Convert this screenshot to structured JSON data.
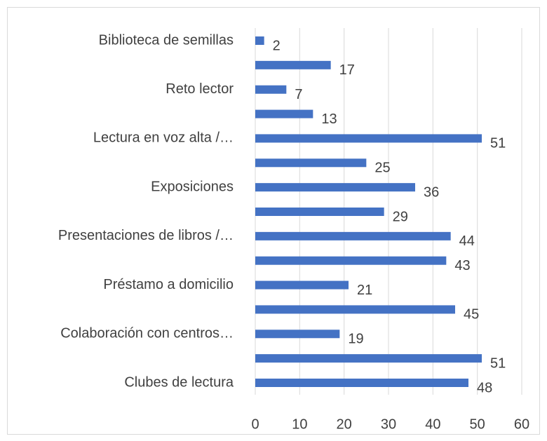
{
  "chart_data": {
    "type": "barh",
    "categories": [
      "Biblioteca de semillas",
      null,
      "Reto lector",
      null,
      "Lectura en voz alta /…",
      null,
      "Exposiciones",
      null,
      "Presentaciones de libros /…",
      null,
      "Préstamo a domicilio",
      null,
      "Colaboración con centros…",
      null,
      "Clubes de lectura"
    ],
    "values": [
      2,
      17,
      7,
      13,
      51,
      25,
      36,
      29,
      44,
      43,
      21,
      45,
      19,
      51,
      48
    ],
    "color": "#4472c4",
    "xlim": [
      0,
      60
    ],
    "xticks": [
      0,
      10,
      20,
      30,
      40,
      50,
      60
    ],
    "grid": true
  }
}
